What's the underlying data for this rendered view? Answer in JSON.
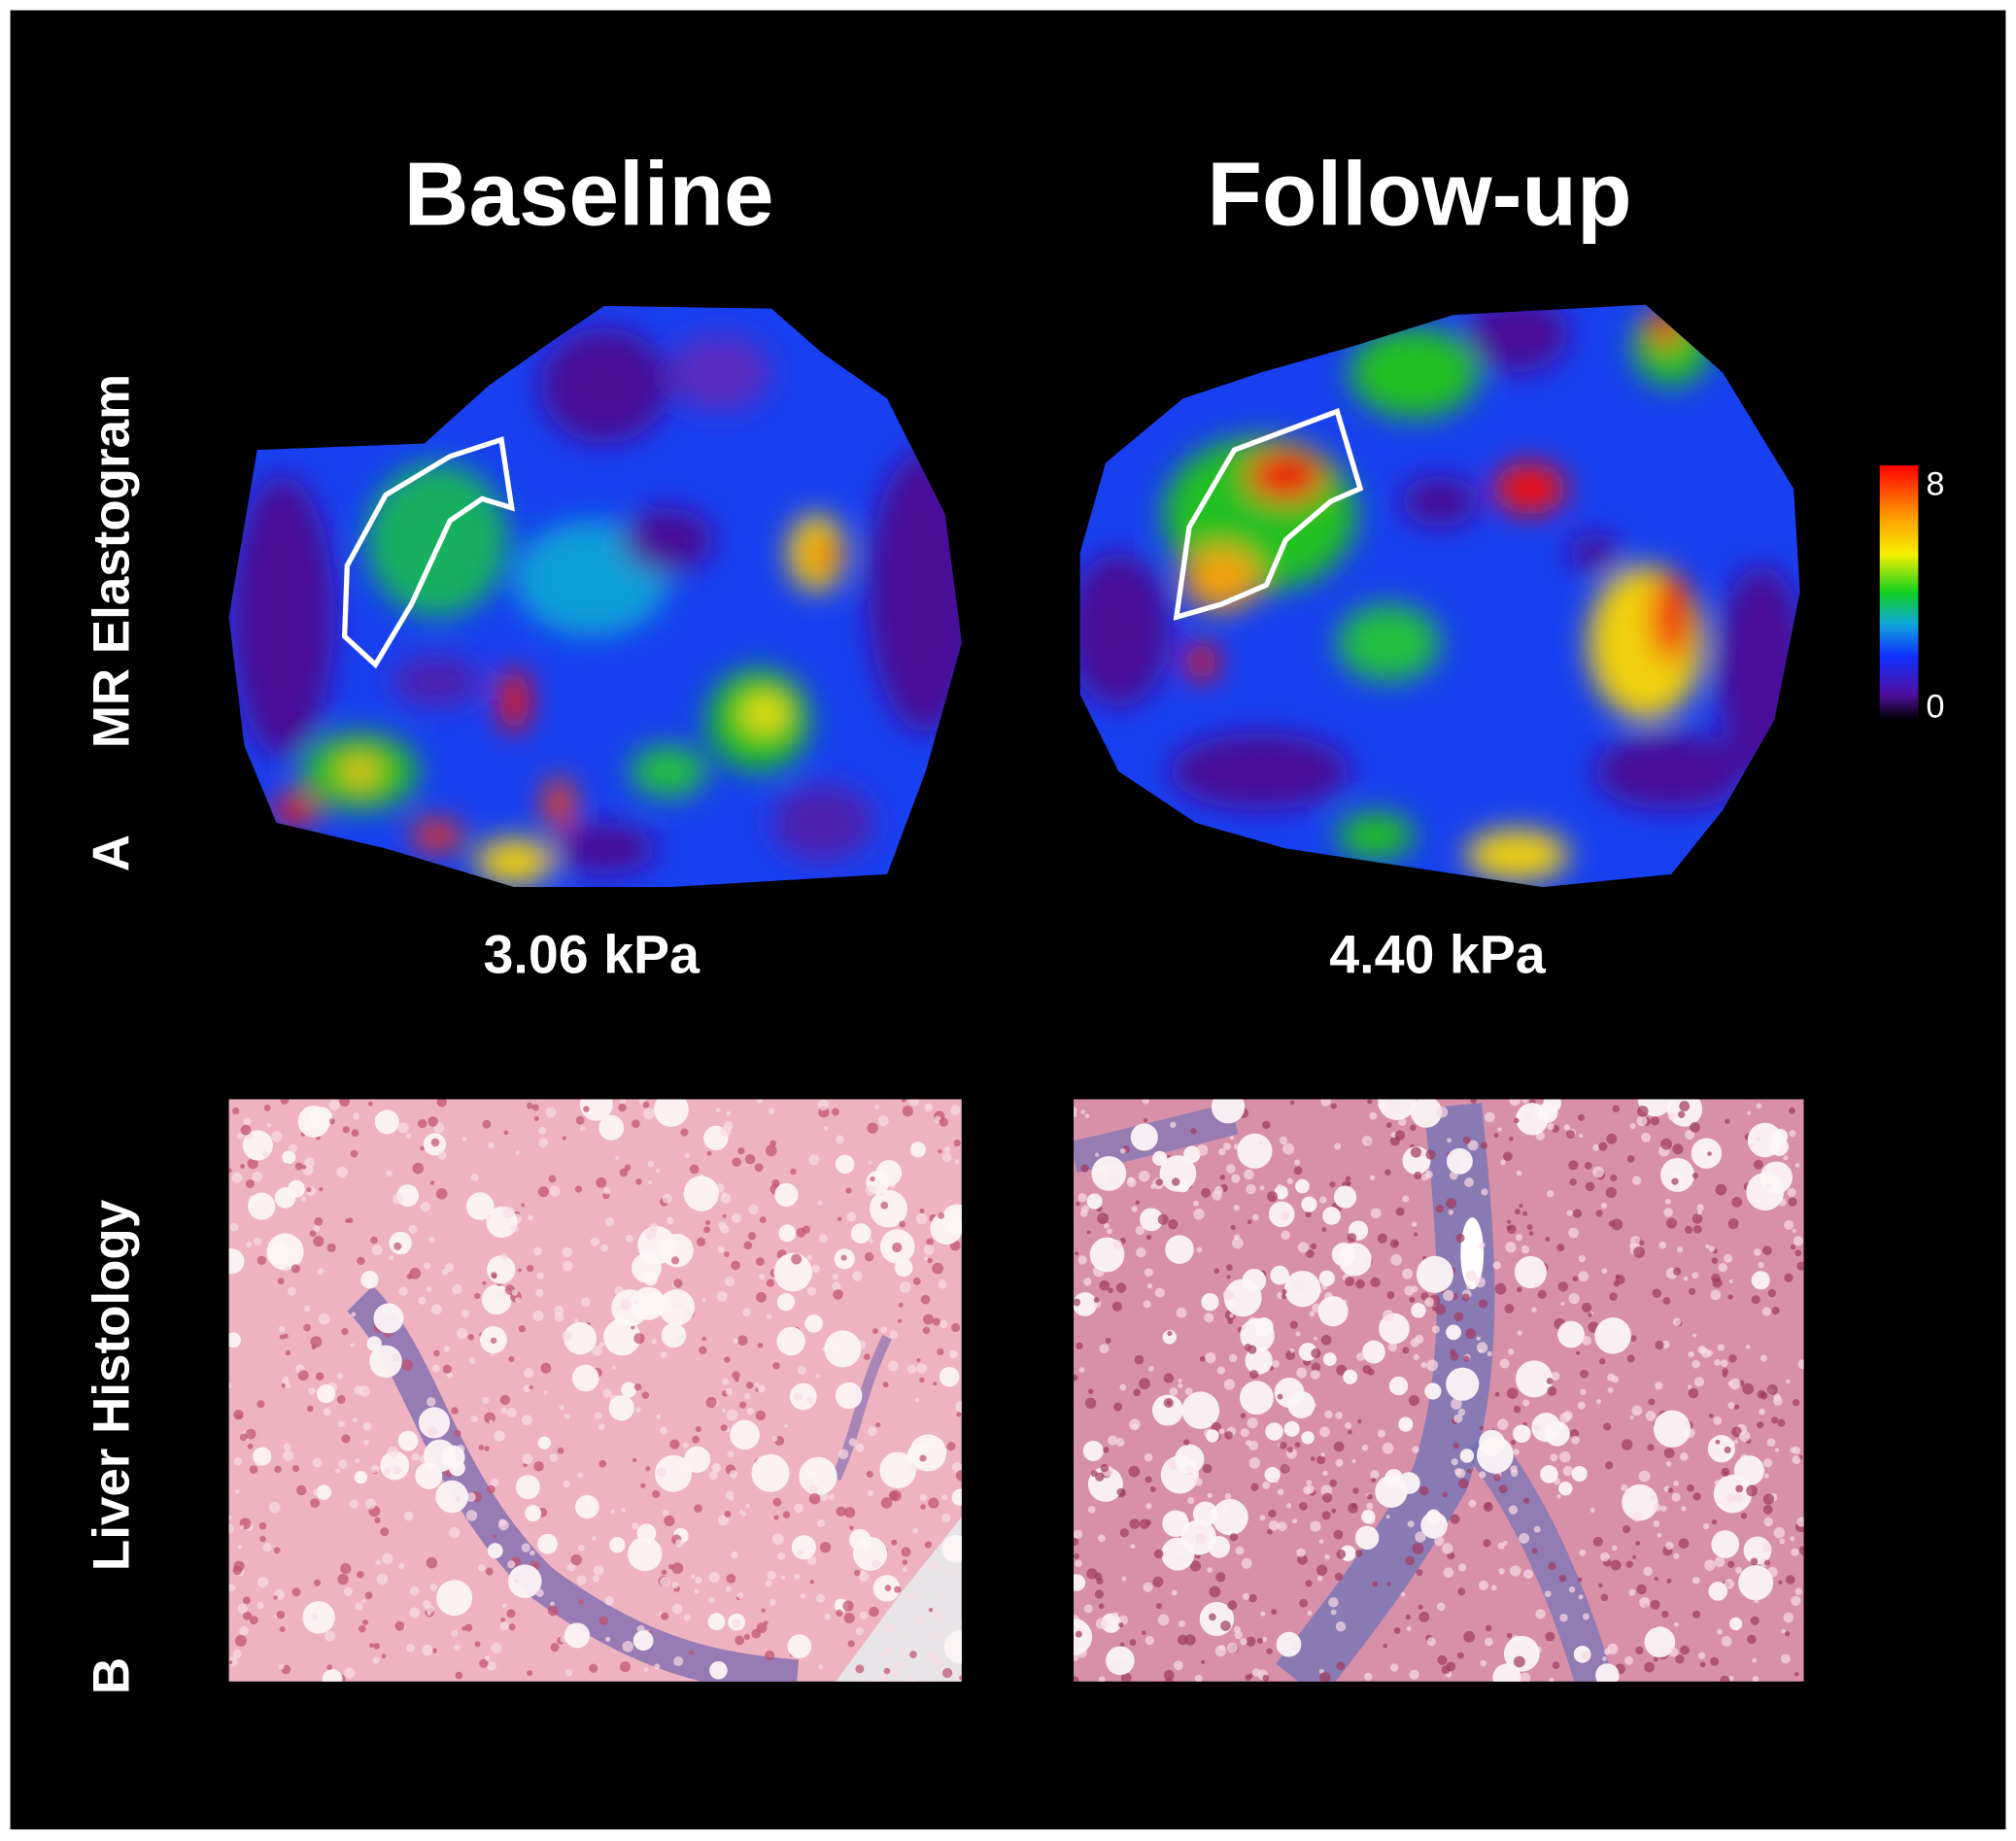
{
  "columns": [
    "Baseline",
    "Follow-up"
  ],
  "rows": [
    {
      "letter": "A",
      "label": "MR Elastogram"
    },
    {
      "letter": "B",
      "label": "Liver Histology"
    }
  ],
  "stiffness": [
    "3.06 kPa",
    "4.40 kPa"
  ],
  "colorbar": {
    "max": 8,
    "min": 0
  }
}
